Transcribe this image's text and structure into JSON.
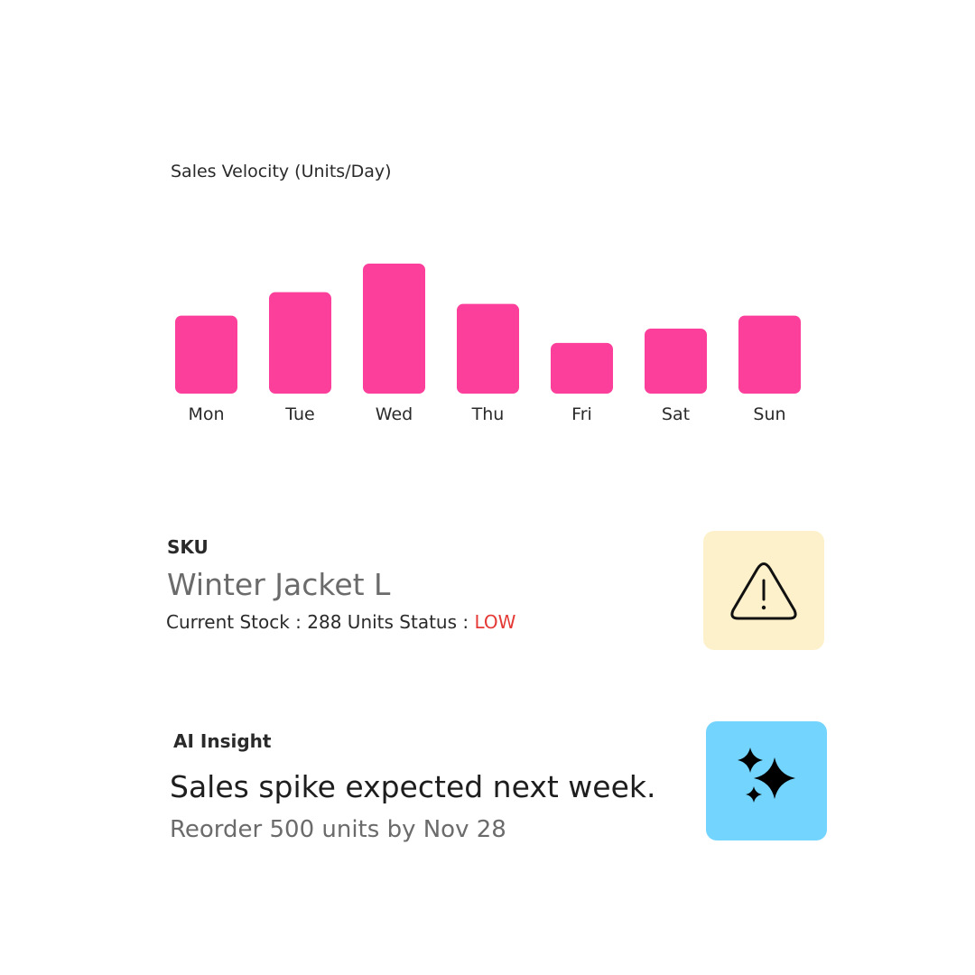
{
  "chart_data": {
    "type": "bar",
    "title": "Sales Velocity (Units/Day)",
    "categories": [
      "Mon",
      "Tue",
      "Wed",
      "Thu",
      "Fri",
      "Sat",
      "Sun"
    ],
    "values": [
      60,
      78,
      100,
      69,
      39,
      50,
      60
    ],
    "bar_color": "#fc3f9a",
    "grid": false,
    "xlabel": "",
    "ylabel": ""
  },
  "sku": {
    "label": "SKU",
    "name": "Winter Jacket L",
    "stock_text": "Current Stock : 288 Units Status : ",
    "status": "LOW",
    "status_color": "#e53935",
    "icon": "warning-triangle-icon",
    "icon_bg": "#fdf1cb"
  },
  "insight": {
    "label": "AI Insight",
    "headline": "Sales spike expected next week.",
    "sub": "Reorder 500 units by Nov 28",
    "icon": "sparkles-icon",
    "icon_bg": "#73d4fe"
  }
}
